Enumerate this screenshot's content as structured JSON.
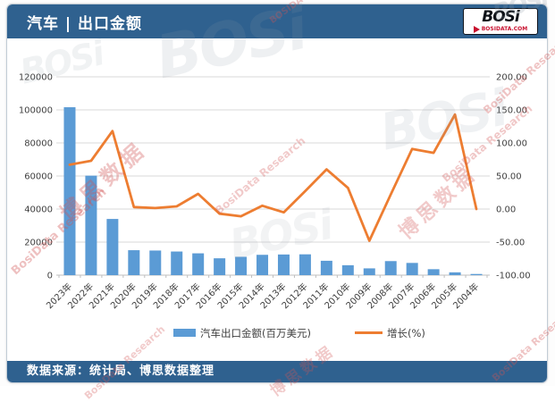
{
  "header": {
    "title": "汽车 | 出口金额"
  },
  "logo": {
    "text": "BOSi",
    "site": "BOSIDATA.COM"
  },
  "footer": {
    "source": "数据来源：统计局、博思数据整理"
  },
  "watermarks": {
    "cn": "博思数据",
    "en": "BosiData Research",
    "logo": "BOSi",
    "site": "BOSIDATA.COM"
  },
  "colors": {
    "header_blue": "#2f618f",
    "bar_blue": "#5b9bd5",
    "line_orange": "#ed7d31",
    "grid_gray": "#d9d9d9",
    "axis_text": "#3f3f3f"
  },
  "chart_data": {
    "type": "bar+line combo",
    "title": "汽车出口金额",
    "categories": [
      "2023年",
      "2022年",
      "2021年",
      "2020年",
      "2019年",
      "2018年",
      "2017年",
      "2016年",
      "2015年",
      "2014年",
      "2013年",
      "2012年",
      "2011年",
      "2010年",
      "2009年",
      "2008年",
      "2007年",
      "2006年",
      "2005年",
      "2004年"
    ],
    "series": [
      {
        "name": "汽车出口金额(百万美元)",
        "type": "bar",
        "axis": "left",
        "color": "#5b9bd5",
        "values": [
          101600,
          60200,
          34000,
          15100,
          14900,
          14300,
          13200,
          10200,
          11100,
          12300,
          12500,
          12600,
          8700,
          6000,
          4100,
          8500,
          7400,
          3600,
          1700,
          700
        ]
      },
      {
        "name": "增长(%)",
        "type": "line",
        "axis": "right",
        "color": "#ed7d31",
        "values": [
          67,
          73,
          118,
          3,
          1.5,
          4,
          23,
          -7,
          -11,
          5,
          -5,
          27,
          60,
          32,
          -48,
          22,
          91,
          85,
          143,
          0
        ]
      }
    ],
    "left_axis": {
      "min": 0,
      "max": 120000,
      "step": 20000,
      "ticks": [
        "120000",
        "100000",
        "80000",
        "60000",
        "40000",
        "20000",
        "0"
      ]
    },
    "right_axis": {
      "min": -100,
      "max": 200,
      "step": 50,
      "ticks": [
        "200.00",
        "150.00",
        "100.00",
        "50.00",
        "0.00",
        "-50.00",
        "-100.00"
      ]
    },
    "grid": true,
    "legend_position": "bottom",
    "x_labels_rotation": -45
  }
}
